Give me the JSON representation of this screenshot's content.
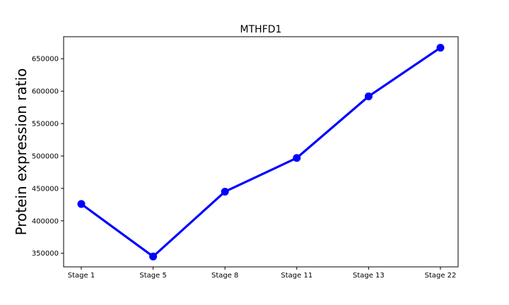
{
  "chart_data": {
    "type": "line",
    "title": "MTHFD1",
    "xlabel": "",
    "ylabel": "Protein expression ratio",
    "categories": [
      "Stage 1",
      "Stage 5",
      "Stage 8",
      "Stage 11",
      "Stage 13",
      "Stage 22"
    ],
    "series": [
      {
        "values": [
          426000,
          345000,
          445000,
          497000,
          592000,
          667000
        ],
        "color": "#0000ff"
      }
    ],
    "ylim": [
      329000,
      684000
    ],
    "yticks": [
      350000,
      400000,
      450000,
      500000,
      550000,
      600000,
      650000
    ],
    "ytick_labels": [
      "350000",
      "400000",
      "450000",
      "500000",
      "550000",
      "600000",
      "650000"
    ],
    "grid": false,
    "legend": "none"
  }
}
